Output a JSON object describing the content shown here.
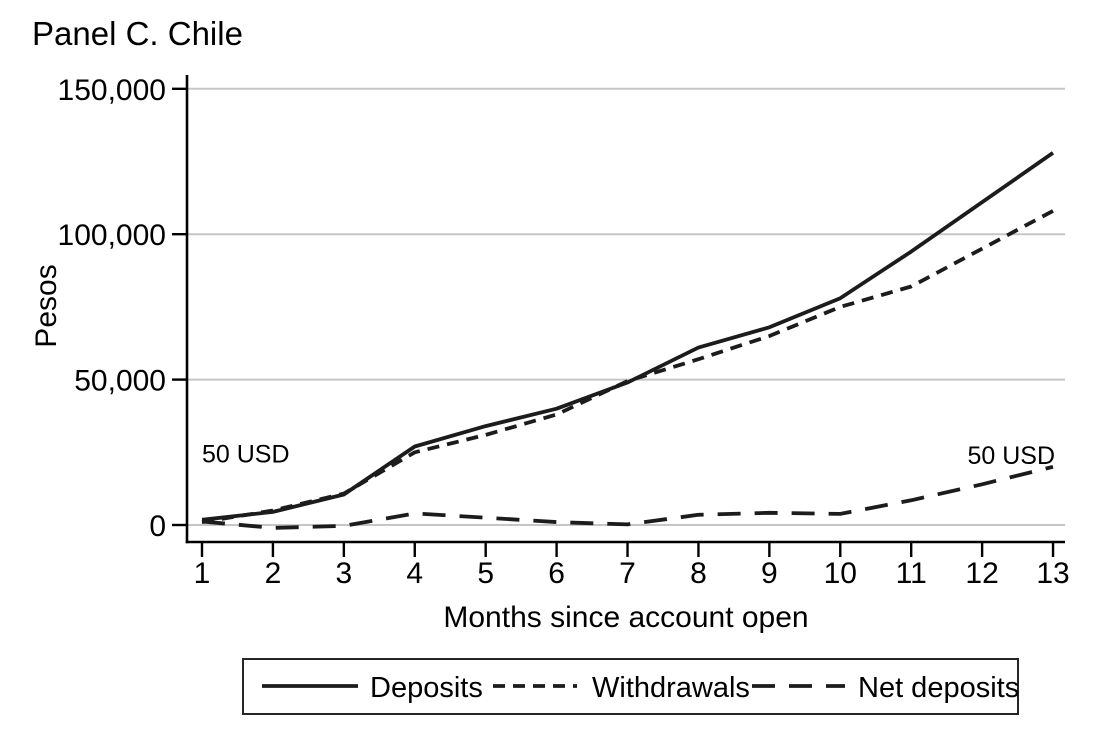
{
  "title": "Panel C. Chile",
  "colors": {
    "line": "#1c1c1c",
    "grid": "#c6c6c6",
    "axis": "#000000",
    "background": "#ffffff"
  },
  "y_axis": {
    "label": "Pesos",
    "ticks": [
      "0",
      "50,000",
      "100,000",
      "150,000"
    ],
    "tick_values": [
      0,
      50000,
      100000,
      150000
    ]
  },
  "x_axis": {
    "label": "Months since account open",
    "ticks": [
      "1",
      "2",
      "3",
      "4",
      "5",
      "6",
      "7",
      "8",
      "9",
      "10",
      "11",
      "12",
      "13"
    ]
  },
  "legend": {
    "items": [
      {
        "label": "Deposits",
        "style": "solid"
      },
      {
        "label": "Withdrawals",
        "style": "short-dash"
      },
      {
        "label": "Net deposits",
        "style": "long-dash"
      }
    ]
  },
  "chart_data": {
    "type": "line",
    "title": "Panel C. Chile",
    "xlabel": "Months since account open",
    "ylabel": "Pesos",
    "x": [
      1,
      2,
      3,
      4,
      5,
      6,
      7,
      8,
      9,
      10,
      11,
      12,
      13
    ],
    "series": [
      {
        "name": "Deposits",
        "line_style": "solid",
        "values": [
          1800,
          4500,
          10500,
          27000,
          34000,
          40000,
          49000,
          61000,
          68000,
          78000,
          94000,
          111000,
          128000
        ]
      },
      {
        "name": "Withdrawals",
        "line_style": "short-dash",
        "values": [
          1000,
          5000,
          10800,
          25000,
          31000,
          38000,
          49500,
          57000,
          65000,
          75000,
          82000,
          95000,
          108000
        ]
      },
      {
        "name": "Net deposits",
        "line_style": "long-dash",
        "values": [
          1200,
          -1000,
          -300,
          4000,
          2500,
          1000,
          200,
          3500,
          4200,
          3800,
          8500,
          14000,
          20000
        ]
      }
    ],
    "ylim": [
      0,
      150000
    ],
    "xlim": [
      1,
      13
    ],
    "grid": "horizontal",
    "legend_position": "bottom",
    "annotations": [
      {
        "text": "50 USD",
        "x": 1,
        "y": 21500,
        "align": "left"
      },
      {
        "text": "50 USD",
        "x": 13,
        "y": 21000,
        "align": "right"
      }
    ]
  }
}
